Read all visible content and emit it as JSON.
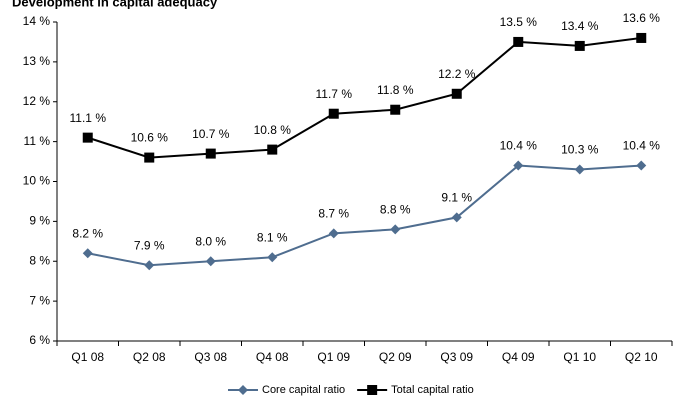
{
  "chart_data": {
    "type": "line",
    "title": "Development in capital adequacy",
    "categories": [
      "Q1 08",
      "Q2 08",
      "Q3 08",
      "Q4 08",
      "Q1 09",
      "Q2 09",
      "Q3 09",
      "Q4 09",
      "Q1 10",
      "Q2 10"
    ],
    "series": [
      {
        "name": "Core capital ratio",
        "color": "#4f6d8f",
        "marker": "diamond",
        "values": [
          8.2,
          7.9,
          8.0,
          8.1,
          8.7,
          8.8,
          9.1,
          10.4,
          10.3,
          10.4
        ],
        "value_labels": [
          "8.2 %",
          "7.9 %",
          "8.0 %",
          "8.1 %",
          "8.7 %",
          "8.8 %",
          "9.1 %",
          "10.4 %",
          "10.3 %",
          "10.4 %"
        ]
      },
      {
        "name": "Total capital ratio",
        "color": "#000000",
        "marker": "square",
        "values": [
          11.1,
          10.6,
          10.7,
          10.8,
          11.7,
          11.8,
          12.2,
          13.5,
          13.4,
          13.6
        ],
        "value_labels": [
          "11.1 %",
          "10.6 %",
          "10.7 %",
          "10.8 %",
          "11.7 %",
          "11.8 %",
          "12.2 %",
          "13.5 %",
          "13.4 %",
          "13.6 %"
        ]
      }
    ],
    "ylim": [
      6,
      14
    ],
    "yticks": [
      {
        "value": 6,
        "label": "6 %"
      },
      {
        "value": 7,
        "label": "7 %"
      },
      {
        "value": 8,
        "label": "8 %"
      },
      {
        "value": 9,
        "label": "9 %"
      },
      {
        "value": 10,
        "label": "10 %"
      },
      {
        "value": 11,
        "label": "11 %"
      },
      {
        "value": 12,
        "label": "12 %"
      },
      {
        "value": 13,
        "label": "13 %"
      },
      {
        "value": 14,
        "label": "14 %"
      }
    ],
    "grid": false,
    "legend": "bottom"
  }
}
